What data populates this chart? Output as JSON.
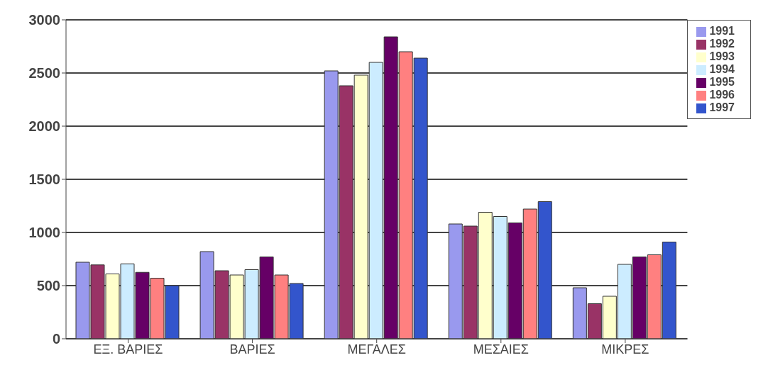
{
  "chart_data": {
    "type": "bar",
    "categories": [
      "ΕΞ. ΒΑΡΙΕΣ",
      "ΒΑΡΙΕΣ",
      "ΜΕΓΑΛΕΣ",
      "ΜΕΣΑΙΕΣ",
      "ΜΙΚΡΕΣ"
    ],
    "series": [
      {
        "name": "1991",
        "color": "#9999ee",
        "values": [
          720,
          820,
          2520,
          1080,
          480
        ]
      },
      {
        "name": "1992",
        "color": "#993366",
        "values": [
          695,
          640,
          2380,
          1060,
          330
        ]
      },
      {
        "name": "1993",
        "color": "#ffffcc",
        "values": [
          610,
          600,
          2480,
          1190,
          400
        ]
      },
      {
        "name": "1994",
        "color": "#ccecff",
        "values": [
          705,
          650,
          2600,
          1150,
          700
        ]
      },
      {
        "name": "1995",
        "color": "#660066",
        "values": [
          625,
          770,
          2840,
          1090,
          770
        ]
      },
      {
        "name": "1996",
        "color": "#ff8080",
        "values": [
          570,
          600,
          2700,
          1220,
          790
        ]
      },
      {
        "name": "1997",
        "color": "#3355cc",
        "values": [
          500,
          520,
          2640,
          1290,
          910
        ]
      }
    ],
    "ylim": [
      0,
      3000
    ],
    "yticks": [
      0,
      500,
      1000,
      1500,
      2000,
      2500,
      3000
    ],
    "grid": "y",
    "legend": "top right"
  }
}
